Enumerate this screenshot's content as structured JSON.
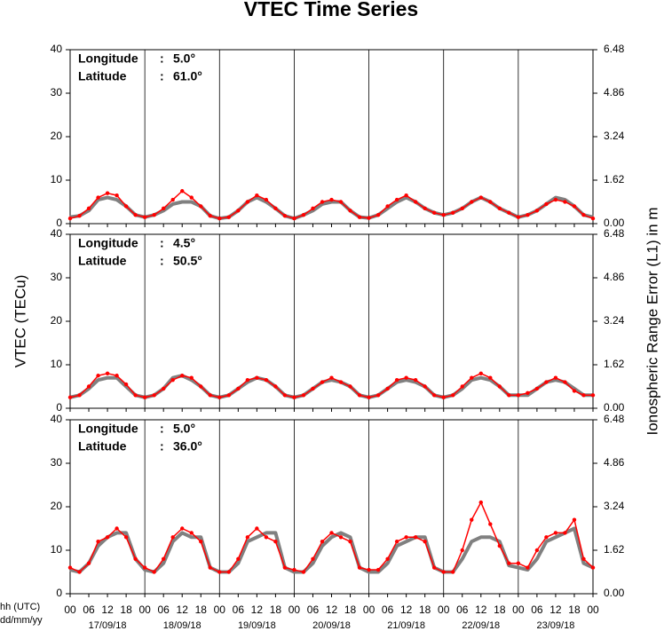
{
  "figure": {
    "title": "VTEC Time Series",
    "ylabel": "VTEC (TECu)",
    "y2label": "Ionospheric Range Error (L1) in m",
    "x_unit_labels": [
      "hh (UTC)",
      "dd/mm/yy"
    ],
    "x": [
      0,
      3,
      6,
      9,
      12,
      15,
      18,
      21,
      24,
      27,
      30,
      33,
      36,
      39,
      42,
      45,
      48,
      51,
      54,
      57,
      60,
      63,
      66,
      69,
      72,
      75,
      78,
      81,
      84,
      87,
      90,
      93,
      96,
      99,
      102,
      105,
      108,
      111,
      114,
      117,
      120,
      123,
      126,
      129,
      132,
      135,
      138,
      141,
      144,
      147,
      150,
      153,
      156,
      159,
      162,
      165,
      168
    ],
    "xlim": [
      0,
      168
    ],
    "xticks": [
      {
        "value": 0,
        "label": "00"
      },
      {
        "value": 6,
        "label": "06"
      },
      {
        "value": 12,
        "label": "12"
      },
      {
        "value": 18,
        "label": "18"
      },
      {
        "value": 24,
        "label": "00"
      },
      {
        "value": 30,
        "label": "06"
      },
      {
        "value": 36,
        "label": "12"
      },
      {
        "value": 42,
        "label": "18"
      },
      {
        "value": 48,
        "label": "00"
      },
      {
        "value": 54,
        "label": "06"
      },
      {
        "value": 60,
        "label": "12"
      },
      {
        "value": 66,
        "label": "18"
      },
      {
        "value": 72,
        "label": "00"
      },
      {
        "value": 78,
        "label": "06"
      },
      {
        "value": 84,
        "label": "12"
      },
      {
        "value": 90,
        "label": "18"
      },
      {
        "value": 96,
        "label": "00"
      },
      {
        "value": 102,
        "label": "06"
      },
      {
        "value": 108,
        "label": "12"
      },
      {
        "value": 114,
        "label": "18"
      },
      {
        "value": 120,
        "label": "00"
      },
      {
        "value": 126,
        "label": "06"
      },
      {
        "value": 132,
        "label": "12"
      },
      {
        "value": 138,
        "label": "18"
      },
      {
        "value": 144,
        "label": "00"
      },
      {
        "value": 150,
        "label": "06"
      },
      {
        "value": 156,
        "label": "12"
      },
      {
        "value": 162,
        "label": "18"
      },
      {
        "value": 168,
        "label": "00"
      }
    ],
    "date_labels": [
      {
        "value": 12,
        "label": "17/09/18"
      },
      {
        "value": 36,
        "label": "18/09/18"
      },
      {
        "value": 60,
        "label": "19/09/18"
      },
      {
        "value": 84,
        "label": "20/09/18"
      },
      {
        "value": 108,
        "label": "21/09/18"
      },
      {
        "value": 132,
        "label": "22/09/18"
      },
      {
        "value": 156,
        "label": "23/09/18"
      }
    ],
    "day_lines": [
      24,
      48,
      72,
      96,
      120,
      144
    ]
  },
  "chart_data": [
    {
      "type": "line",
      "info": [
        {
          "label": "Longitude",
          "sep": ":",
          "value": "5.0°"
        },
        {
          "label": "Latitude",
          "sep": ":",
          "value": "61.0°"
        }
      ],
      "ylim": [
        0,
        40
      ],
      "yticks": [
        0,
        10,
        20,
        30,
        40
      ],
      "y2lim": [
        0,
        6.48
      ],
      "y2ticks": [
        {
          "value": 0,
          "label": "0.00"
        },
        1.62,
        3.24,
        4.86,
        6.48
      ],
      "series": [
        {
          "color": "#808080",
          "values": [
            1.5,
            1.8,
            3,
            5.5,
            6,
            5.5,
            4,
            2,
            1.5,
            2,
            3,
            4.5,
            5,
            5,
            4,
            1.8,
            1.2,
            1.5,
            3,
            5,
            6,
            5,
            3.5,
            1.8,
            1.2,
            2,
            3,
            4.5,
            5,
            5,
            3,
            1.5,
            1.3,
            2,
            3.5,
            5,
            6,
            5,
            3.5,
            2.5,
            2,
            2.5,
            3.5,
            5,
            6,
            5,
            3.5,
            2.5,
            1.5,
            2,
            3,
            4.5,
            6,
            5.5,
            4,
            2,
            1.5
          ]
        },
        {
          "color": "#ff0000",
          "values": [
            1.2,
            1.8,
            3.5,
            6,
            7,
            6.5,
            4,
            2,
            1.5,
            2,
            3.5,
            5.5,
            7.5,
            6,
            4,
            1.8,
            1.2,
            1.5,
            3,
            5,
            6.5,
            5.5,
            3.5,
            1.8,
            1.2,
            2,
            3.5,
            5,
            5.5,
            5,
            3,
            1.5,
            1.3,
            2,
            4,
            5.5,
            6.5,
            5,
            3.5,
            2.5,
            2,
            2.5,
            3.5,
            5,
            6,
            5,
            3.5,
            2.5,
            1.5,
            2,
            3,
            4.5,
            5.5,
            5,
            4,
            2,
            1.2
          ]
        }
      ]
    },
    {
      "type": "line",
      "info": [
        {
          "label": "Longitude",
          "sep": ":",
          "value": "4.5°"
        },
        {
          "label": "Latitude",
          "sep": ":",
          "value": "50.5°"
        }
      ],
      "ylim": [
        0,
        40
      ],
      "yticks": [
        0,
        10,
        20,
        30,
        40
      ],
      "y2lim": [
        0,
        6.48
      ],
      "y2ticks": [
        {
          "value": 0,
          "label": "0.00"
        },
        1.62,
        3.24,
        4.86,
        6.48
      ],
      "series": [
        {
          "color": "#808080",
          "values": [
            2.5,
            3,
            4.5,
            6.5,
            7,
            7,
            5,
            3,
            2.5,
            3,
            4.5,
            7,
            7.5,
            6.5,
            5,
            3,
            2.5,
            3,
            4.5,
            6,
            7,
            6.5,
            5,
            3,
            2.5,
            3,
            4.5,
            6,
            6.5,
            6,
            5,
            3,
            2.5,
            3,
            4.5,
            6,
            6.5,
            6,
            5,
            3,
            2.5,
            3,
            4.5,
            6.5,
            7,
            6.5,
            5,
            3,
            3,
            3,
            4.5,
            6,
            6.5,
            6,
            4.5,
            3,
            3
          ]
        },
        {
          "color": "#ff0000",
          "values": [
            2.5,
            3,
            5,
            7.5,
            8,
            7.5,
            5.5,
            3,
            2.5,
            3,
            4.5,
            6.5,
            7.5,
            7,
            5,
            3,
            2.5,
            3,
            4.5,
            6.5,
            7,
            6.5,
            5,
            3,
            2.5,
            3,
            4.5,
            6,
            7,
            6,
            5,
            3,
            2.5,
            3,
            4.5,
            6.5,
            7,
            6.5,
            5,
            3,
            2.5,
            3,
            5,
            7,
            8,
            7,
            5,
            3,
            3,
            3.5,
            4.5,
            6,
            7,
            6,
            4,
            3,
            3
          ]
        }
      ]
    },
    {
      "type": "line",
      "info": [
        {
          "label": "Longitude",
          "sep": ":",
          "value": "5.0°"
        },
        {
          "label": "Latitude",
          "sep": ":",
          "value": "36.0°"
        }
      ],
      "ylim": [
        0,
        40
      ],
      "yticks": [
        0,
        10,
        20,
        30,
        40
      ],
      "y2lim": [
        0,
        6.48
      ],
      "y2ticks": [
        {
          "value": 0,
          "label": "0.00"
        },
        1.62,
        3.24,
        4.86,
        6.48
      ],
      "series": [
        {
          "color": "#808080",
          "values": [
            5.5,
            5,
            7,
            11,
            13,
            14,
            14,
            8,
            5.5,
            5,
            7,
            12,
            14,
            13,
            13,
            6,
            5,
            5,
            7,
            12,
            13,
            14,
            14,
            6,
            5,
            5,
            7,
            11,
            13,
            14,
            13,
            6,
            5,
            5,
            7,
            11,
            12,
            13,
            13,
            6,
            5,
            5,
            8,
            12,
            13,
            13,
            12,
            6.5,
            6,
            5.5,
            8,
            12,
            13,
            14,
            15,
            7,
            6
          ]
        },
        {
          "color": "#ff0000",
          "values": [
            6,
            5,
            7,
            12,
            13,
            15,
            13,
            8,
            6,
            5,
            8,
            13,
            15,
            14,
            12,
            6,
            5,
            5,
            8,
            13,
            15,
            13,
            12,
            6,
            5.5,
            5,
            8,
            12,
            14,
            13,
            12,
            6,
            5.5,
            5.5,
            8,
            12,
            13,
            13,
            12,
            6,
            5,
            5,
            10,
            17,
            21,
            16,
            11,
            7,
            7,
            6,
            10,
            13,
            14,
            14,
            17,
            8,
            6
          ]
        }
      ]
    }
  ]
}
